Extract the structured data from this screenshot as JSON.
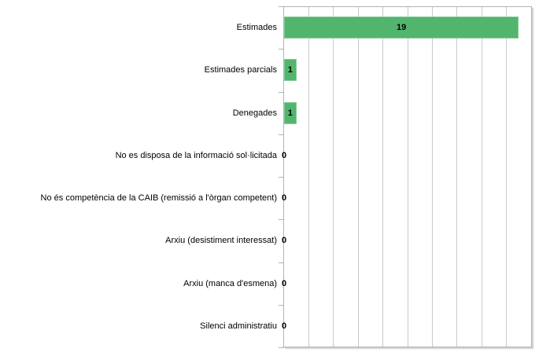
{
  "chart_data": {
    "type": "bar",
    "orientation": "horizontal",
    "title": "",
    "xlabel": "",
    "ylabel": "",
    "categories": [
      "Estimades",
      "Estimades parcials",
      "Denegades",
      "No es disposa de la informació sol·licitada",
      "No és competència de la CAIB (remissió a l'òrgan competent)",
      "Arxiu (desistiment interessat)",
      "Arxiu (manca d'esmena)",
      "Silenci administratiu"
    ],
    "values": [
      19,
      1,
      1,
      0,
      0,
      0,
      0,
      0
    ],
    "data_labels": [
      "19",
      "1",
      "1",
      "0",
      "0",
      "0",
      "0",
      "0"
    ],
    "xlim": [
      0,
      20
    ],
    "gridline_interval": 2,
    "grid": "vertical",
    "legend": "none",
    "colors": {
      "bar": "#52b56e",
      "bar_border": "#85cb9a",
      "gridline": "#c9c9c9",
      "plot_border": "#b3b3b3",
      "text": "#000000",
      "background": "#ffffff"
    }
  }
}
